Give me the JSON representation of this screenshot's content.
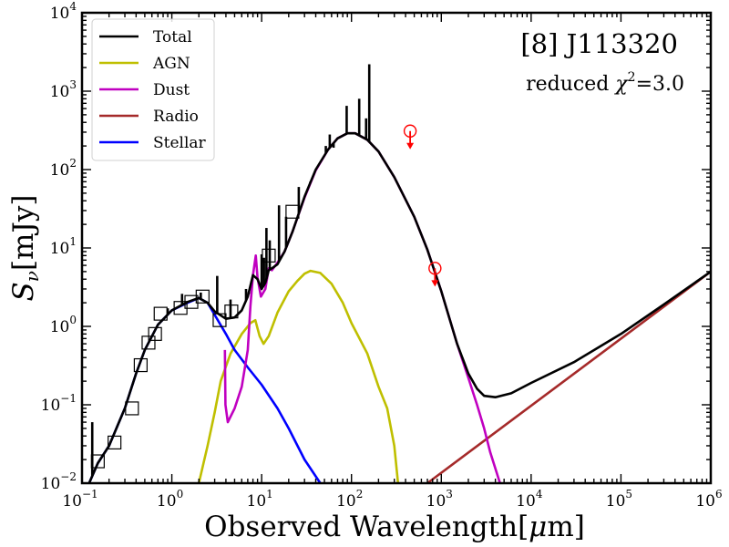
{
  "chart_data": {
    "type": "line",
    "x_scale": "log",
    "y_scale": "log",
    "xlim": [
      0.1,
      1000000
    ],
    "ylim": [
      0.01,
      10000
    ],
    "xlabel_main": "Observed Wavelength",
    "xlabel_unit_pre": "[",
    "xlabel_unit_mu": "μ",
    "xlabel_unit_post": "m]",
    "ylabel_S": "S",
    "ylabel_sub": "ν",
    "ylabel_unit": "[mJy]",
    "x_ticks": [
      {
        "base": "10",
        "exp": "−1",
        "value": 0.1
      },
      {
        "base": "10",
        "exp": "0",
        "value": 1
      },
      {
        "base": "10",
        "exp": "1",
        "value": 10
      },
      {
        "base": "10",
        "exp": "2",
        "value": 100
      },
      {
        "base": "10",
        "exp": "3",
        "value": 1000
      },
      {
        "base": "10",
        "exp": "4",
        "value": 10000
      },
      {
        "base": "10",
        "exp": "5",
        "value": 100000
      },
      {
        "base": "10",
        "exp": "6",
        "value": 1000000
      }
    ],
    "y_ticks": [
      {
        "base": "10",
        "exp": "−2",
        "value": 0.01
      },
      {
        "base": "10",
        "exp": "−1",
        "value": 0.1
      },
      {
        "base": "10",
        "exp": "0",
        "value": 1
      },
      {
        "base": "10",
        "exp": "1",
        "value": 10
      },
      {
        "base": "10",
        "exp": "2",
        "value": 100
      },
      {
        "base": "10",
        "exp": "3",
        "value": 1000
      },
      {
        "base": "10",
        "exp": "4",
        "value": 10000
      }
    ],
    "annotation": {
      "title": "[8] J113320",
      "chi_prefix": "reduced ",
      "chi_symbol": "χ",
      "chi_exp": "2",
      "chi_value": "=3.0"
    },
    "legend_position": "upper-left",
    "series": [
      {
        "name": "Total",
        "color": "#000000",
        "points": [
          [
            0.12,
            0.01
          ],
          [
            0.15,
            0.018
          ],
          [
            0.2,
            0.03
          ],
          [
            0.3,
            0.09
          ],
          [
            0.4,
            0.25
          ],
          [
            0.5,
            0.5
          ],
          [
            0.7,
            1.05
          ],
          [
            1.0,
            1.6
          ],
          [
            1.5,
            2.05
          ],
          [
            2.0,
            2.3
          ],
          [
            2.5,
            2.0
          ],
          [
            3.0,
            1.55
          ],
          [
            4.0,
            1.25
          ],
          [
            5.0,
            1.3
          ],
          [
            6.0,
            1.6
          ],
          [
            7.0,
            2.4
          ],
          [
            8.0,
            4.5
          ],
          [
            9.0,
            4.0
          ],
          [
            10.0,
            3.0
          ],
          [
            11.0,
            3.6
          ],
          [
            12.0,
            5.2
          ],
          [
            13.0,
            5.5
          ],
          [
            15.0,
            6.2
          ],
          [
            18.0,
            9.0
          ],
          [
            22.0,
            16.0
          ],
          [
            30.0,
            45.0
          ],
          [
            40.0,
            100.0
          ],
          [
            55.0,
            180.0
          ],
          [
            70.0,
            250.0
          ],
          [
            90.0,
            290.0
          ],
          [
            110.0,
            290.0
          ],
          [
            150.0,
            240.0
          ],
          [
            200.0,
            170.0
          ],
          [
            300.0,
            80.0
          ],
          [
            500.0,
            25.0
          ],
          [
            700.0,
            9.5
          ],
          [
            1000.0,
            2.8
          ],
          [
            1500.0,
            0.6
          ],
          [
            2000.0,
            0.25
          ],
          [
            2500.0,
            0.16
          ],
          [
            3000.0,
            0.13
          ],
          [
            4000.0,
            0.125
          ],
          [
            6000.0,
            0.14
          ],
          [
            10000.0,
            0.19
          ],
          [
            30000.0,
            0.35
          ],
          [
            100000.0,
            0.8
          ],
          [
            300000.0,
            1.9
          ],
          [
            1000000.0,
            5.0
          ]
        ],
        "lines": [
          [
            0.13,
            0.06
          ],
          [
            0.9,
            1.7
          ],
          [
            1.3,
            2.6
          ],
          [
            2.1,
            2.7
          ],
          [
            3.2,
            4.4
          ],
          [
            4.5,
            2.2
          ],
          [
            6.7,
            3.0
          ],
          [
            7.2,
            2.6
          ],
          [
            10.0,
            8.3
          ],
          [
            10.6,
            7.5
          ],
          [
            11.3,
            18.0
          ],
          [
            12.3,
            12.5
          ],
          [
            15.6,
            35.0
          ],
          [
            18.7,
            25.0
          ],
          [
            25.9,
            60.0
          ],
          [
            34.8,
            70.0
          ],
          [
            51.8,
            200.0
          ],
          [
            57.3,
            280.0
          ],
          [
            63.2,
            190.0
          ],
          [
            88.4,
            650.0
          ],
          [
            121.9,
            800.0
          ],
          [
            145.5,
            450.0
          ],
          [
            157.7,
            2200.0
          ]
        ]
      },
      {
        "name": "AGN",
        "color": "#bfbf00",
        "points": [
          [
            2.0,
            0.01
          ],
          [
            2.5,
            0.03
          ],
          [
            3.0,
            0.08
          ],
          [
            3.5,
            0.2
          ],
          [
            4.5,
            0.45
          ],
          [
            6.0,
            0.8
          ],
          [
            7.5,
            1.1
          ],
          [
            8.5,
            1.2
          ],
          [
            9.5,
            0.75
          ],
          [
            10.5,
            0.6
          ],
          [
            12.0,
            0.75
          ],
          [
            15.0,
            1.5
          ],
          [
            20.0,
            2.8
          ],
          [
            25.0,
            3.8
          ],
          [
            30.0,
            4.7
          ],
          [
            35.0,
            5.1
          ],
          [
            45.0,
            4.8
          ],
          [
            60.0,
            3.5
          ],
          [
            80.0,
            2.0
          ],
          [
            100.0,
            1.1
          ],
          [
            150.0,
            0.45
          ],
          [
            200.0,
            0.17
          ],
          [
            250.0,
            0.09
          ],
          [
            300.0,
            0.03
          ],
          [
            330.0,
            0.01
          ]
        ]
      },
      {
        "name": "Dust",
        "color": "#c000c0",
        "points": [
          [
            3.9,
            0.5
          ],
          [
            3.95,
            0.1
          ],
          [
            4.2,
            0.06
          ],
          [
            5.0,
            0.09
          ],
          [
            6.0,
            0.17
          ],
          [
            7.0,
            0.5
          ],
          [
            7.5,
            1.8
          ],
          [
            8.0,
            4.5
          ],
          [
            8.6,
            8.0
          ],
          [
            9.0,
            4.2
          ],
          [
            9.8,
            2.4
          ],
          [
            11.0,
            3.0
          ],
          [
            12.0,
            5.5
          ],
          [
            13.0,
            5.2
          ],
          [
            15.0,
            6.5
          ],
          [
            18.0,
            9.0
          ],
          [
            22.0,
            16.0
          ],
          [
            30.0,
            44.0
          ],
          [
            40.0,
            98.0
          ],
          [
            55.0,
            180.0
          ],
          [
            70.0,
            250.0
          ],
          [
            90.0,
            290.0
          ],
          [
            110.0,
            290.0
          ],
          [
            150.0,
            240.0
          ],
          [
            200.0,
            170.0
          ],
          [
            300.0,
            80.0
          ],
          [
            500.0,
            25.0
          ],
          [
            700.0,
            9.5
          ],
          [
            1000.0,
            2.8
          ],
          [
            1500.0,
            0.6
          ],
          [
            2000.0,
            0.22
          ],
          [
            2500.0,
            0.1
          ],
          [
            3000.0,
            0.05
          ],
          [
            3500.0,
            0.025
          ],
          [
            4500.0,
            0.01
          ]
        ]
      },
      {
        "name": "Radio",
        "color": "#a52a2a",
        "points": [
          [
            700.0,
            0.01
          ],
          [
            1000000.0,
            5.0
          ]
        ]
      },
      {
        "name": "Stellar",
        "color": "#0000ff",
        "points": [
          [
            0.12,
            0.01
          ],
          [
            0.15,
            0.018
          ],
          [
            0.2,
            0.03
          ],
          [
            0.3,
            0.09
          ],
          [
            0.4,
            0.25
          ],
          [
            0.5,
            0.5
          ],
          [
            0.7,
            1.05
          ],
          [
            1.0,
            1.6
          ],
          [
            1.5,
            2.0
          ],
          [
            2.0,
            2.3
          ],
          [
            2.5,
            2.0
          ],
          [
            3.0,
            1.4
          ],
          [
            4.0,
            0.8
          ],
          [
            5.0,
            0.5
          ],
          [
            7.0,
            0.3
          ],
          [
            10.0,
            0.18
          ],
          [
            15.0,
            0.09
          ],
          [
            20.0,
            0.05
          ],
          [
            30.0,
            0.02
          ],
          [
            45.0,
            0.01
          ]
        ]
      }
    ],
    "observations": [
      [
        0.15,
        0.019
      ],
      [
        0.23,
        0.033
      ],
      [
        0.36,
        0.09
      ],
      [
        0.45,
        0.32
      ],
      [
        0.55,
        0.62
      ],
      [
        0.65,
        0.8
      ],
      [
        0.75,
        1.45
      ],
      [
        1.25,
        1.72
      ],
      [
        1.65,
        2.05
      ],
      [
        2.2,
        2.4
      ],
      [
        3.4,
        1.2
      ],
      [
        4.6,
        1.55
      ],
      [
        12.0,
        8.0
      ],
      [
        22.0,
        29.0
      ]
    ],
    "upper_limits": [
      [
        450.0,
        310.0
      ],
      [
        850.0,
        5.5
      ]
    ],
    "limit_color": "#ff0000"
  }
}
